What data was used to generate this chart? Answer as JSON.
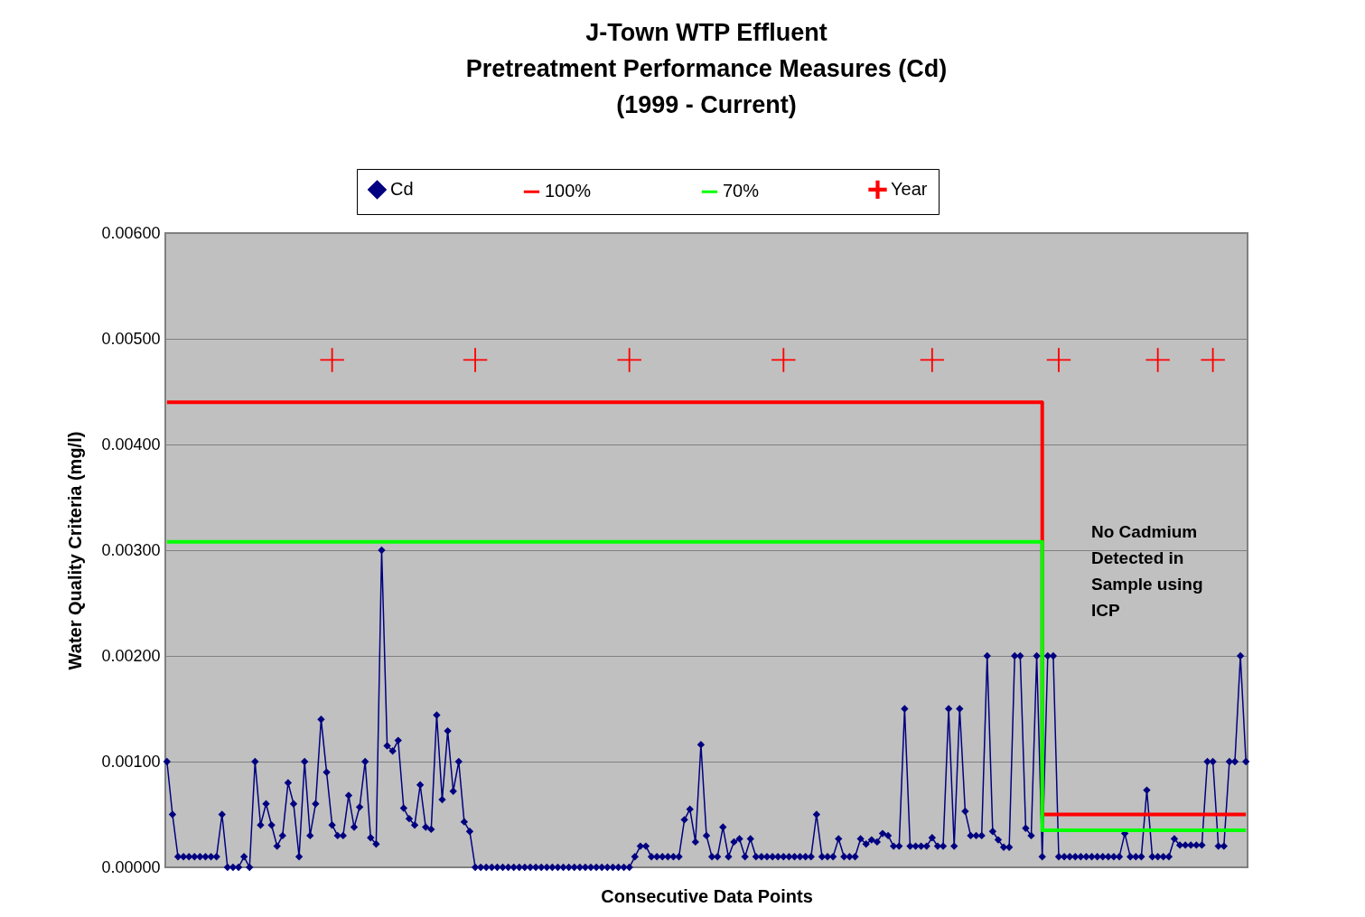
{
  "chart_data": {
    "type": "line",
    "title": "J-Town WTP Effluent\nPretreatment Performance Measures (Cd)\n(1999 - Current)",
    "xlabel": "Consecutive Data Points",
    "ylabel": "Water Quality Criteria (mg/l)",
    "categories": [
      null,
      null,
      null,
      null,
      null,
      null,
      null,
      null,
      null,
      null,
      null,
      null,
      null,
      null,
      null,
      null,
      null,
      null,
      null,
      null,
      null,
      null,
      null,
      null,
      null,
      null,
      null,
      null,
      null,
      null,
      null,
      null,
      null,
      null,
      null,
      null,
      null,
      null,
      null,
      null,
      null,
      null,
      null,
      null,
      null,
      null,
      null,
      null,
      null,
      null,
      null,
      null,
      null,
      null,
      null,
      null,
      null,
      null,
      null,
      null,
      null,
      null,
      null,
      null,
      null,
      null,
      null,
      null,
      null,
      null,
      null,
      null,
      null,
      null,
      null,
      null,
      null,
      null,
      null,
      null,
      null,
      null,
      null,
      null,
      null,
      null,
      null,
      null,
      null,
      null,
      null,
      null,
      null,
      null,
      null,
      null,
      null,
      null,
      null,
      null,
      null,
      null,
      null,
      null,
      null,
      null,
      null,
      null,
      null,
      null,
      null,
      null,
      null,
      null,
      null,
      null,
      null,
      null,
      null,
      null,
      null,
      null,
      null,
      null,
      null,
      null,
      null,
      null,
      null,
      null,
      null,
      null,
      null,
      null,
      null,
      null,
      null,
      null,
      null,
      null,
      null,
      null,
      null,
      null,
      null,
      null,
      null,
      null,
      null,
      null,
      null,
      null,
      null,
      null,
      null,
      null,
      null,
      null,
      null,
      null,
      null,
      null,
      null,
      null,
      null,
      null,
      null,
      null,
      null,
      null,
      null,
      null,
      null,
      null,
      null,
      null,
      null,
      null,
      null,
      null,
      null,
      null,
      null,
      null,
      null,
      null,
      null,
      null,
      null,
      null,
      null,
      null,
      null,
      null,
      null,
      null,
      null
    ],
    "series": [
      {
        "name": "Cd",
        "marker": "diamond",
        "color": "#000080",
        "values": [
          0.001,
          0.0005,
          0.0001,
          0.0001,
          0.0001,
          0.0001,
          0.0001,
          0.0001,
          0.0001,
          0.0001,
          0.0005,
          0,
          0,
          0,
          0.0001,
          0,
          0.001,
          0.0004,
          0.0006,
          0.0004,
          0.0002,
          0.0003,
          0.0008,
          0.0006,
          0.0001,
          0.001,
          0.0003,
          0.0006,
          0.0014,
          0.0009,
          0.0004,
          0.0003,
          0.0003,
          0.00068,
          0.00038,
          0.00057,
          0.001,
          0.00028,
          0.00022,
          0.003,
          0.00115,
          0.0011,
          0.0012,
          0.00056,
          0.00046,
          0.0004,
          0.00078,
          0.00038,
          0.00036,
          0.00144,
          0.00064,
          0.00129,
          0.00072,
          0.001,
          0.00043,
          0.00034,
          0,
          0,
          0,
          0,
          0,
          0,
          0,
          0,
          0,
          0,
          0,
          0,
          0,
          0,
          0,
          0,
          0,
          0,
          0,
          0,
          0,
          0,
          0,
          0,
          0,
          0,
          0,
          0,
          0,
          0.0001,
          0.0002,
          0.0002,
          0.0001,
          0.0001,
          0.0001,
          0.0001,
          0.0001,
          0.0001,
          0.00045,
          0.00055,
          0.00024,
          0.00116,
          0.0003,
          0.0001,
          0.0001,
          0.00038,
          0.0001,
          0.00024,
          0.00027,
          0.0001,
          0.00027,
          0.0001,
          0.0001,
          0.0001,
          0.0001,
          0.0001,
          0.0001,
          0.0001,
          0.0001,
          0.0001,
          0.0001,
          0.0001,
          0.0005,
          0.0001,
          0.0001,
          0.0001,
          0.00027,
          0.0001,
          0.0001,
          0.0001,
          0.00027,
          0.00022,
          0.00026,
          0.00024,
          0.00032,
          0.0003,
          0.0002,
          0.0002,
          0.0015,
          0.0002,
          0.0002,
          0.0002,
          0.0002,
          0.00028,
          0.0002,
          0.0002,
          0.0015,
          0.0002,
          0.0015,
          0.00053,
          0.0003,
          0.0003,
          0.0003,
          0.002,
          0.00034,
          0.00026,
          0.00019,
          0.00019,
          0.002,
          0.002,
          0.00037,
          0.0003,
          0.002,
          0.0001,
          0.002,
          0.002,
          0.0001,
          0.0001,
          0.0001,
          0.0001,
          0.0001,
          0.0001,
          0.0001,
          0.0001,
          0.0001,
          0.0001,
          0.0001,
          0.0001,
          0.00032,
          0.0001,
          0.0001,
          0.0001,
          0.00073,
          0.0001,
          0.0001,
          0.0001,
          0.0001,
          0.00027,
          0.00021,
          0.00021,
          0.00021,
          0.00021,
          0.00021,
          0.001,
          0.001,
          0.0002,
          0.0002,
          0.001,
          0.001,
          0.002,
          0.001
        ]
      },
      {
        "name": "100%",
        "type": "step",
        "marker": "none",
        "color": "#ff0000",
        "values": [
          0.0044,
          0.0044,
          0.0044,
          0.0044,
          0.0044,
          0.0044,
          0.0044,
          0.0044,
          0.0044,
          0.0044,
          0.0044,
          0.0044,
          0.0044,
          0.0044,
          0.0044,
          0.0044,
          0.0044,
          0.0044,
          0.0044,
          0.0044,
          0.0044,
          0.0044,
          0.0044,
          0.0044,
          0.0044,
          0.0044,
          0.0044,
          0.0044,
          0.0044,
          0.0044,
          0.0044,
          0.0044,
          0.0044,
          0.0044,
          0.0044,
          0.0044,
          0.0044,
          0.0044,
          0.0044,
          0.0044,
          0.0044,
          0.0044,
          0.0044,
          0.0044,
          0.0044,
          0.0044,
          0.0044,
          0.0044,
          0.0044,
          0.0044,
          0.0044,
          0.0044,
          0.0044,
          0.0044,
          0.0044,
          0.0044,
          0.0044,
          0.0044,
          0.0044,
          0.0044,
          0.0044,
          0.0044,
          0.0044,
          0.0044,
          0.0044,
          0.0044,
          0.0044,
          0.0044,
          0.0044,
          0.0044,
          0.0044,
          0.0044,
          0.0044,
          0.0044,
          0.0044,
          0.0044,
          0.0044,
          0.0044,
          0.0044,
          0.0044,
          0.0044,
          0.0044,
          0.0044,
          0.0044,
          0.0044,
          0.0044,
          0.0044,
          0.0044,
          0.0044,
          0.0044,
          0.0044,
          0.0044,
          0.0044,
          0.0044,
          0.0044,
          0.0044,
          0.0044,
          0.0044,
          0.0044,
          0.0044,
          0.0044,
          0.0044,
          0.0044,
          0.0044,
          0.0044,
          0.0044,
          0.0044,
          0.0044,
          0.0044,
          0.0044,
          0.0044,
          0.0044,
          0.0044,
          0.0044,
          0.0044,
          0.0044,
          0.0044,
          0.0044,
          0.0044,
          0.0044,
          0.0044,
          0.0044,
          0.0044,
          0.0044,
          0.0044,
          0.0044,
          0.0044,
          0.0044,
          0.0044,
          0.0044,
          0.0044,
          0.0044,
          0.0044,
          0.0044,
          0.0044,
          0.0044,
          0.0044,
          0.0044,
          0.0044,
          0.0044,
          0.0044,
          0.0044,
          0.0044,
          0.0044,
          0.0044,
          0.0044,
          0.0044,
          0.0044,
          0.0044,
          0.0044,
          0.0044,
          0.0044,
          0.0044,
          0.0044,
          0.0044,
          0.0044,
          0.0044,
          0.0044,
          0.0044,
          0.0005,
          0.0005,
          0.0005,
          0.0005,
          0.0005,
          0.0005,
          0.0005,
          0.0005,
          0.0005,
          0.0005,
          0.0005,
          0.0005,
          0.0005,
          0.0005,
          0.0005,
          0.0005,
          0.0005,
          0.0005,
          0.0005,
          0.0005,
          0.0005,
          0.0005,
          0.0005,
          0.0005,
          0.0005,
          0.0005,
          0.0005,
          0.0005,
          0.0005,
          0.0005,
          0.0005,
          0.0005,
          0.0005,
          0.0005,
          0.0005,
          0.0005,
          0.0005,
          0.0005
        ]
      },
      {
        "name": "70%",
        "type": "step",
        "marker": "none",
        "color": "#00ff00",
        "values": [
          0.00308,
          0.00308,
          0.00308,
          0.00308,
          0.00308,
          0.00308,
          0.00308,
          0.00308,
          0.00308,
          0.00308,
          0.00308,
          0.00308,
          0.00308,
          0.00308,
          0.00308,
          0.00308,
          0.00308,
          0.00308,
          0.00308,
          0.00308,
          0.00308,
          0.00308,
          0.00308,
          0.00308,
          0.00308,
          0.00308,
          0.00308,
          0.00308,
          0.00308,
          0.00308,
          0.00308,
          0.00308,
          0.00308,
          0.00308,
          0.00308,
          0.00308,
          0.00308,
          0.00308,
          0.00308,
          0.00308,
          0.00308,
          0.00308,
          0.00308,
          0.00308,
          0.00308,
          0.00308,
          0.00308,
          0.00308,
          0.00308,
          0.00308,
          0.00308,
          0.00308,
          0.00308,
          0.00308,
          0.00308,
          0.00308,
          0.00308,
          0.00308,
          0.00308,
          0.00308,
          0.00308,
          0.00308,
          0.00308,
          0.00308,
          0.00308,
          0.00308,
          0.00308,
          0.00308,
          0.00308,
          0.00308,
          0.00308,
          0.00308,
          0.00308,
          0.00308,
          0.00308,
          0.00308,
          0.00308,
          0.00308,
          0.00308,
          0.00308,
          0.00308,
          0.00308,
          0.00308,
          0.00308,
          0.00308,
          0.00308,
          0.00308,
          0.00308,
          0.00308,
          0.00308,
          0.00308,
          0.00308,
          0.00308,
          0.00308,
          0.00308,
          0.00308,
          0.00308,
          0.00308,
          0.00308,
          0.00308,
          0.00308,
          0.00308,
          0.00308,
          0.00308,
          0.00308,
          0.00308,
          0.00308,
          0.00308,
          0.00308,
          0.00308,
          0.00308,
          0.00308,
          0.00308,
          0.00308,
          0.00308,
          0.00308,
          0.00308,
          0.00308,
          0.00308,
          0.00308,
          0.00308,
          0.00308,
          0.00308,
          0.00308,
          0.00308,
          0.00308,
          0.00308,
          0.00308,
          0.00308,
          0.00308,
          0.00308,
          0.00308,
          0.00308,
          0.00308,
          0.00308,
          0.00308,
          0.00308,
          0.00308,
          0.00308,
          0.00308,
          0.00308,
          0.00308,
          0.00308,
          0.00308,
          0.00308,
          0.00308,
          0.00308,
          0.00308,
          0.00308,
          0.00308,
          0.00308,
          0.00308,
          0.00308,
          0.00308,
          0.00308,
          0.00308,
          0.00308,
          0.00308,
          0.00308,
          0.00035,
          0.00035,
          0.00035,
          0.00035,
          0.00035,
          0.00035,
          0.00035,
          0.00035,
          0.00035,
          0.00035,
          0.00035,
          0.00035,
          0.00035,
          0.00035,
          0.00035,
          0.00035,
          0.00035,
          0.00035,
          0.00035,
          0.00035,
          0.00035,
          0.00035,
          0.00035,
          0.00035,
          0.00035,
          0.00035,
          0.00035,
          0.00035,
          0.00035,
          0.00035,
          0.00035,
          0.00035,
          0.00035,
          0.00035,
          0.00035,
          0.00035,
          0.00035,
          0.00035
        ]
      },
      {
        "name": "Year",
        "type": "scatter",
        "marker": "cross",
        "color": "#ff0000",
        "values": [
          null,
          null,
          null,
          null,
          null,
          null,
          null,
          null,
          null,
          null,
          null,
          null,
          null,
          null,
          null,
          null,
          null,
          null,
          null,
          null,
          null,
          null,
          null,
          null,
          null,
          null,
          null,
          null,
          null,
          null,
          0.0048,
          null,
          null,
          null,
          null,
          null,
          null,
          null,
          null,
          null,
          null,
          null,
          null,
          null,
          null,
          null,
          null,
          null,
          null,
          null,
          null,
          null,
          null,
          null,
          null,
          null,
          0.0048,
          null,
          null,
          null,
          null,
          null,
          null,
          null,
          null,
          null,
          null,
          null,
          null,
          null,
          null,
          null,
          null,
          null,
          null,
          null,
          null,
          null,
          null,
          null,
          null,
          null,
          null,
          null,
          0.0048,
          null,
          null,
          null,
          null,
          null,
          null,
          null,
          null,
          null,
          null,
          null,
          null,
          null,
          null,
          null,
          null,
          null,
          null,
          null,
          null,
          null,
          null,
          null,
          null,
          null,
          null,
          null,
          0.0048,
          null,
          null,
          null,
          null,
          null,
          null,
          null,
          null,
          null,
          null,
          null,
          null,
          null,
          null,
          null,
          null,
          null,
          null,
          null,
          null,
          null,
          null,
          null,
          null,
          null,
          null,
          0.0048,
          null,
          null,
          null,
          null,
          null,
          null,
          null,
          null,
          null,
          null,
          null,
          null,
          null,
          null,
          null,
          null,
          null,
          null,
          null,
          null,
          null,
          null,
          0.0048,
          null,
          null,
          null,
          null,
          null,
          null,
          null,
          null,
          null,
          null,
          null,
          null,
          null,
          null,
          null,
          null,
          null,
          0.0048,
          null,
          null,
          null,
          null,
          null,
          null,
          null,
          null,
          null,
          0.0048,
          null,
          null,
          null,
          null,
          null,
          null
        ]
      }
    ],
    "ylim": [
      0,
      0.006
    ],
    "yticks": [
      {
        "value": 0,
        "label": "0.00000"
      },
      {
        "value": 0.001,
        "label": "0.00100"
      },
      {
        "value": 0.002,
        "label": "0.00200"
      },
      {
        "value": 0.003,
        "label": "0.00300"
      },
      {
        "value": 0.004,
        "label": "0.00400"
      },
      {
        "value": 0.005,
        "label": "0.00500"
      },
      {
        "value": 0.006,
        "label": "0.00600"
      }
    ],
    "grid": "y",
    "legend": "top",
    "tick_labels": "y",
    "annotations": [
      "No Cadmium Detected in Sample using ICP"
    ]
  }
}
